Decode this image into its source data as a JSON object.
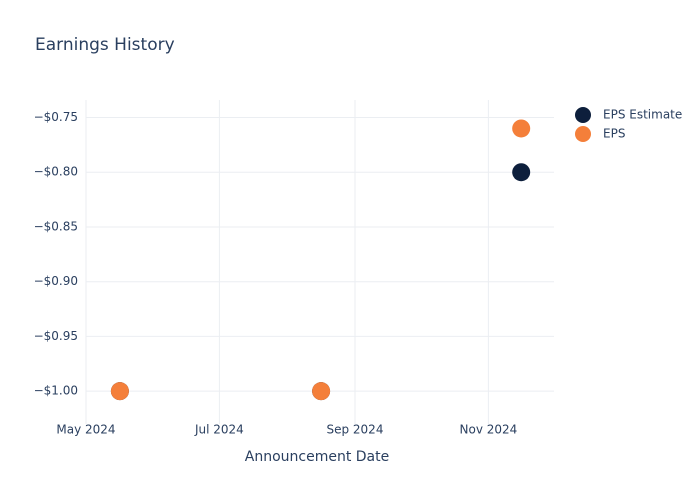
{
  "chart_data": {
    "type": "scatter",
    "title": "Earnings History",
    "x_label": "Announcement Date",
    "x": [
      "2024-05",
      "2024-08",
      "2024-11"
    ],
    "series": [
      {
        "name": "EPS Estimate",
        "color": "#0d1f3c",
        "values": [
          -1.0,
          -1.0,
          -0.8
        ]
      },
      {
        "name": "EPS",
        "color": "#f47f3a",
        "values": [
          -1.0,
          -1.0,
          -0.76
        ]
      }
    ],
    "xlim": [
      "2024-05",
      "2024-12"
    ],
    "xticks": [
      {
        "value": "2024-05",
        "label": "May 2024"
      },
      {
        "value": "2024-07",
        "label": "Jul 2024"
      },
      {
        "value": "2024-09",
        "label": "Sep 2024"
      },
      {
        "value": "2024-11",
        "label": "Nov 2024"
      }
    ],
    "ylim": [
      -1.03,
      -0.734
    ],
    "yticks": [
      {
        "value": -1.0,
        "label": "−$1.00"
      },
      {
        "value": -0.95,
        "label": "−$0.95"
      },
      {
        "value": -0.9,
        "label": "−$0.90"
      },
      {
        "value": -0.85,
        "label": "−$0.85"
      },
      {
        "value": -0.8,
        "label": "−$0.80"
      },
      {
        "value": -0.75,
        "label": "−$0.75"
      }
    ],
    "grid": true,
    "legend": "top-right"
  }
}
